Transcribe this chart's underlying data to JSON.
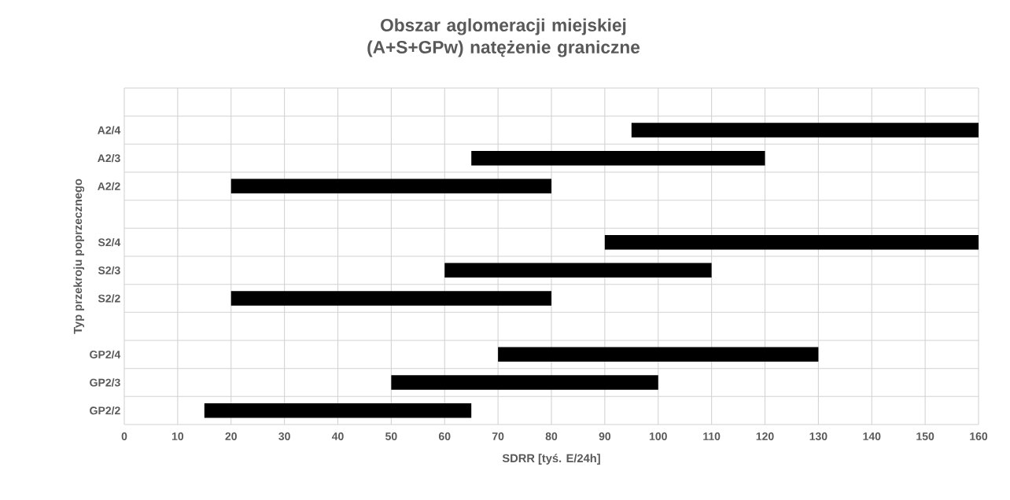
{
  "chart_data": {
    "type": "bar",
    "orientation": "horizontal",
    "title": "Obszar aglomeracji miejskiej (A+S+GPw) natężenie graniczne",
    "xlabel": "SDRR [tyś. E/24h]",
    "ylabel": "Typ przekroju poprzecznego",
    "categories": [
      null,
      "A2/4",
      "A2/3",
      "A2/2",
      null,
      "S2/4",
      "S2/3",
      "S2/2",
      null,
      "GP2/4",
      "GP2/3",
      "GP2/2"
    ],
    "base": [
      null,
      95,
      65,
      20,
      null,
      90,
      60,
      20,
      null,
      70,
      50,
      15
    ],
    "values": [
      null,
      65,
      55,
      60,
      null,
      70,
      50,
      60,
      null,
      60,
      50,
      50
    ],
    "color": "#000000",
    "xlim": [
      0,
      160
    ],
    "xticks": [
      0,
      10,
      20,
      30,
      40,
      50,
      60,
      70,
      80,
      90,
      100,
      110,
      120,
      130,
      140,
      150,
      160
    ],
    "grid": true
  }
}
